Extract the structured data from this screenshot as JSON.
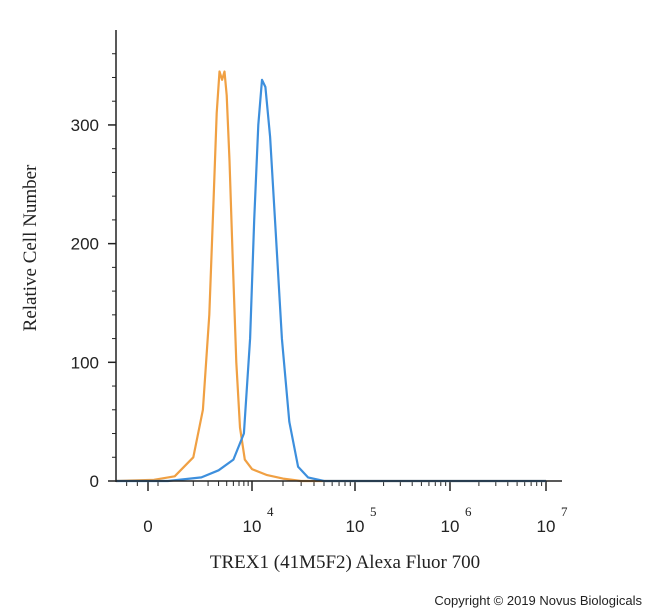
{
  "chart_data": {
    "type": "line",
    "title": "",
    "xlabel": "TREX1 (41M5F2) Alexa Fluor 700",
    "ylabel": "Relative Cell Number",
    "x_scale": "biexponential",
    "ylim": [
      0,
      380
    ],
    "y_ticks": [
      {
        "value": 0,
        "label": "0"
      },
      {
        "value": 100,
        "label": "100"
      },
      {
        "value": 200,
        "label": "200"
      },
      {
        "value": 300,
        "label": "300"
      }
    ],
    "x_ticks": [
      {
        "value": 0,
        "label": "0",
        "exp": ""
      },
      {
        "value": 10000,
        "label": "10",
        "exp": "4"
      },
      {
        "value": 100000,
        "label": "10",
        "exp": "5"
      },
      {
        "value": 1000000,
        "label": "10",
        "exp": "6"
      },
      {
        "value": 10000000,
        "label": "10",
        "exp": "7"
      }
    ],
    "grid": false,
    "legend": "none",
    "series": [
      {
        "color": "#F0A043",
        "points": [
          [
            -1500,
            0
          ],
          [
            300,
            1
          ],
          [
            1200,
            4
          ],
          [
            2000,
            20
          ],
          [
            2600,
            60
          ],
          [
            3100,
            140
          ],
          [
            3500,
            240
          ],
          [
            3800,
            310
          ],
          [
            4100,
            345
          ],
          [
            4400,
            338
          ],
          [
            4700,
            345
          ],
          [
            5000,
            325
          ],
          [
            5400,
            270
          ],
          [
            5900,
            185
          ],
          [
            6500,
            100
          ],
          [
            7200,
            45
          ],
          [
            8200,
            18
          ],
          [
            10000,
            10
          ],
          [
            14000,
            5
          ],
          [
            20000,
            2
          ],
          [
            30000,
            0
          ],
          [
            10000000,
            0
          ]
        ]
      },
      {
        "color": "#3D8FDD",
        "points": [
          [
            -1500,
            0
          ],
          [
            1000,
            0
          ],
          [
            2500,
            3
          ],
          [
            4000,
            9
          ],
          [
            6000,
            18
          ],
          [
            8000,
            40
          ],
          [
            9500,
            120
          ],
          [
            10500,
            220
          ],
          [
            11500,
            300
          ],
          [
            12500,
            338
          ],
          [
            13500,
            332
          ],
          [
            15000,
            290
          ],
          [
            17000,
            210
          ],
          [
            19500,
            120
          ],
          [
            23000,
            50
          ],
          [
            28000,
            12
          ],
          [
            35000,
            3
          ],
          [
            50000,
            0
          ],
          [
            10000000,
            0
          ]
        ]
      }
    ]
  },
  "copyright": "Copyright © 2019 Novus Biologicals"
}
